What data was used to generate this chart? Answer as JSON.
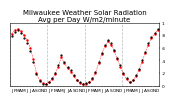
{
  "title": "Milwaukee Weather Solar Radiation",
  "subtitle": "Avg per Day W/m2/minute",
  "background_color": "#ffffff",
  "red_series": [
    0.82,
    0.88,
    0.9,
    0.86,
    0.8,
    0.72,
    0.6,
    0.42,
    0.2,
    0.08,
    0.04,
    0.02,
    0.05,
    0.1,
    0.18,
    0.3,
    0.45,
    0.35,
    0.28,
    0.22,
    0.15,
    0.08,
    0.04,
    0.02,
    0.03,
    0.05,
    0.1,
    0.2,
    0.35,
    0.5,
    0.62,
    0.7,
    0.65,
    0.55,
    0.42,
    0.3,
    0.18,
    0.1,
    0.05,
    0.08,
    0.15,
    0.25,
    0.38,
    0.52,
    0.65,
    0.75,
    0.82,
    0.88
  ],
  "black_series": [
    0.78,
    0.85,
    0.88,
    0.84,
    0.76,
    0.68,
    0.55,
    0.38,
    0.18,
    0.07,
    0.03,
    0.02,
    0.06,
    0.12,
    0.2,
    0.32,
    0.48,
    0.38,
    0.3,
    0.24,
    0.16,
    0.09,
    0.05,
    0.02,
    0.04,
    0.06,
    0.12,
    0.22,
    0.37,
    0.52,
    0.64,
    0.72,
    0.67,
    0.57,
    0.44,
    0.32,
    0.2,
    0.12,
    0.06,
    0.09,
    0.16,
    0.27,
    0.4,
    0.54,
    0.67,
    0.77,
    0.84,
    0.9
  ],
  "n_months": 12,
  "n_years": 4,
  "ylim": [
    0,
    1.0
  ],
  "y_ticks": [
    0.0,
    0.2,
    0.4,
    0.6,
    0.8,
    1.0
  ],
  "y_labels": [
    "0",
    ".2",
    ".4",
    ".6",
    ".8",
    "1"
  ],
  "grid_color": "#aaaaaa",
  "red_color": "#ff0000",
  "black_color": "#000000",
  "title_fontsize": 5.0,
  "tick_fontsize": 3.2
}
